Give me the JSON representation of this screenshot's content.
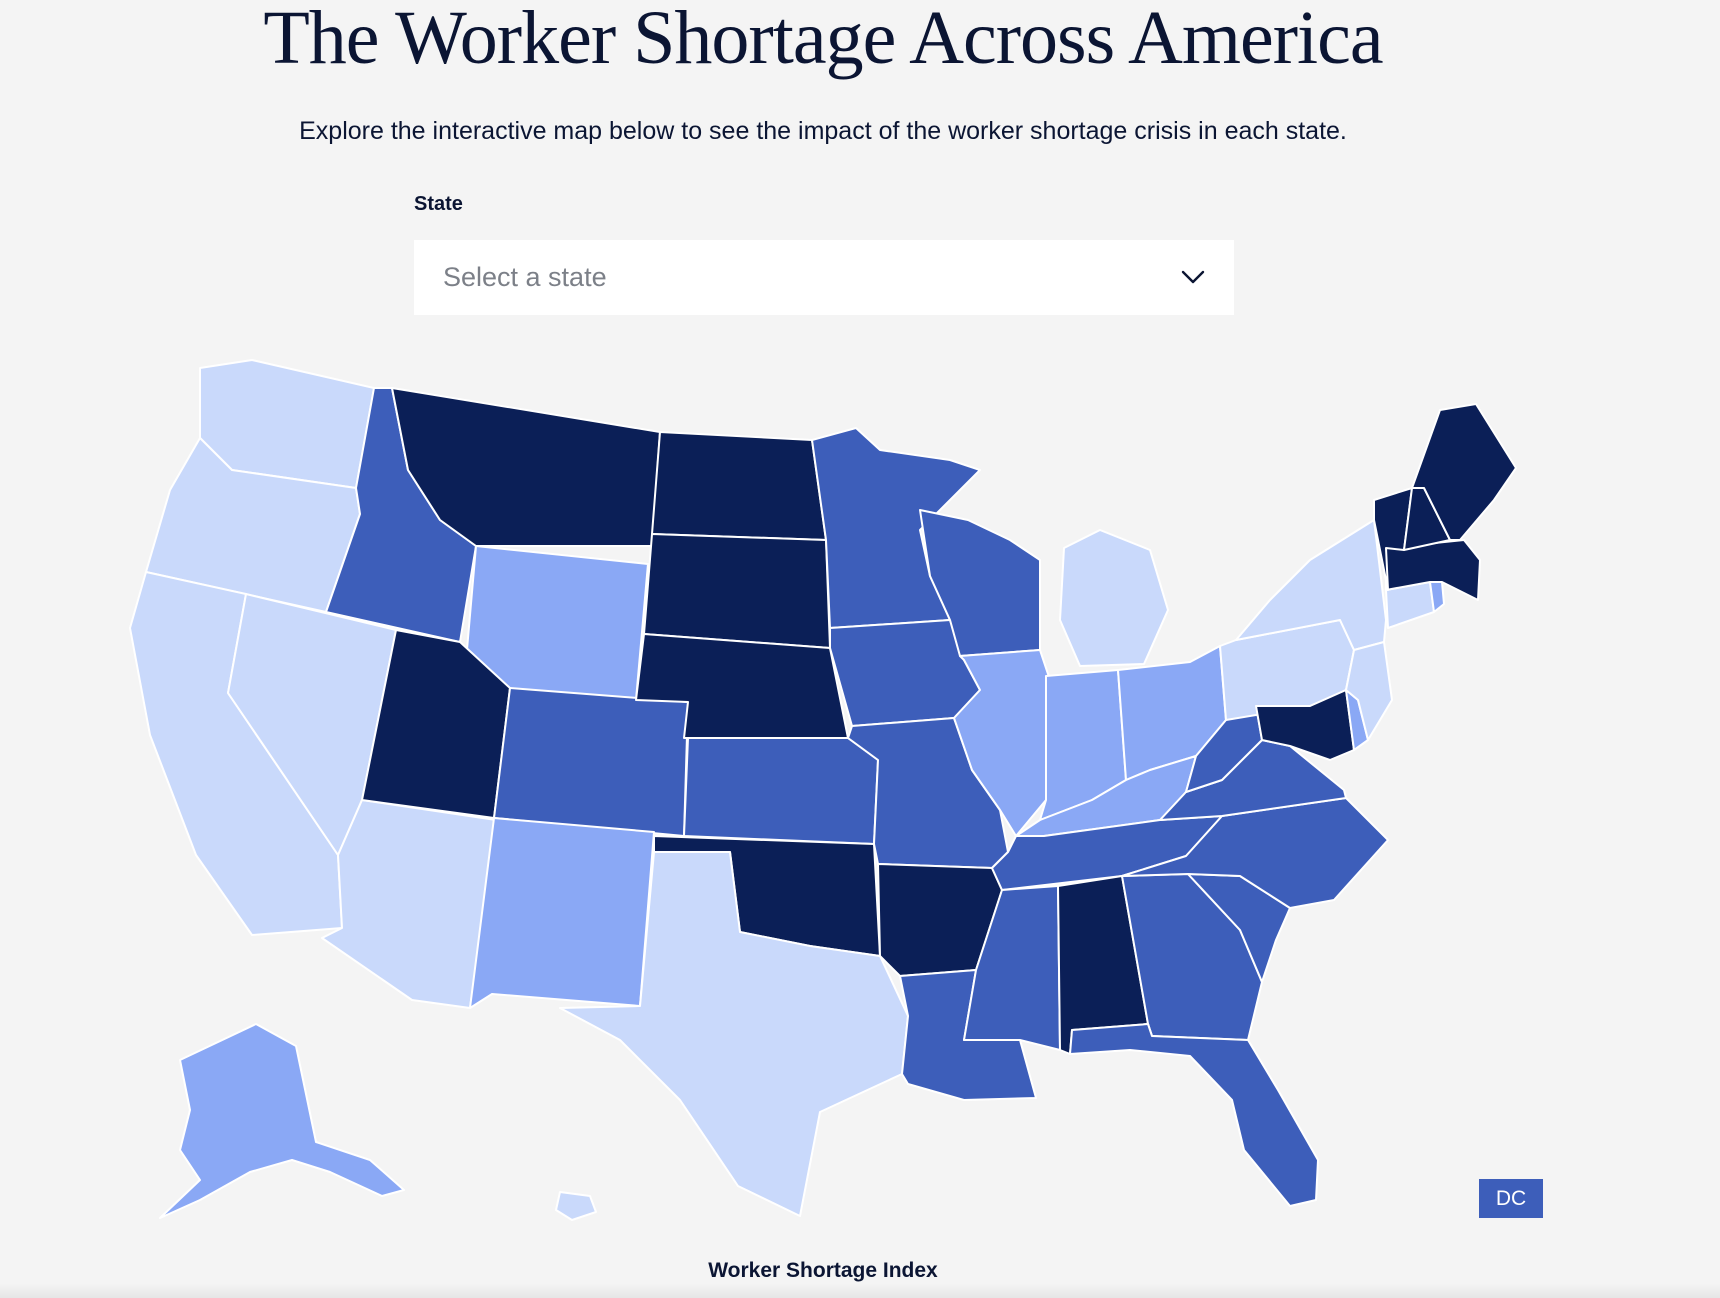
{
  "header": {
    "title": "The Worker Shortage Across America",
    "subtitle": "Explore the interactive map below to see the impact of the worker shortage crisis in each state."
  },
  "state_select": {
    "label": "State",
    "placeholder": "Select a state",
    "icon": "chevron-down-icon"
  },
  "colors": {
    "level_1": "#c9d9fb",
    "level_2": "#8aa8f5",
    "level_3": "#3d5eba",
    "level_4": "#0b1f57"
  },
  "map": {
    "dc_label": "DC",
    "dc_level": 3,
    "state_levels": {
      "WA": 1,
      "OR": 1,
      "CA": 1,
      "NV": 1,
      "AZ": 1,
      "TX": 1,
      "MI": 1,
      "NY": 1,
      "PA": 1,
      "NJ": 1,
      "CT": 1,
      "HI": 1,
      "WY": 2,
      "NM": 2,
      "IL": 2,
      "IN": 2,
      "OH": 2,
      "KY": 2,
      "AK": 2,
      "DE": 2,
      "RI": 2,
      "ID": 3,
      "CO": 3,
      "KS": 3,
      "MN": 3,
      "IA": 3,
      "MO": 3,
      "WI": 3,
      "LA": 3,
      "MS": 3,
      "TN": 3,
      "GA": 3,
      "FL": 3,
      "SC": 3,
      "NC": 3,
      "VA": 3,
      "WV": 3,
      "MT": 4,
      "ND": 4,
      "SD": 4,
      "NE": 4,
      "UT": 4,
      "OK": 4,
      "AR": 4,
      "AL": 4,
      "ME": 4,
      "VT": 4,
      "NH": 4,
      "MA": 4,
      "MD": 4
    }
  },
  "legend": {
    "title": "Worker Shortage Index"
  }
}
